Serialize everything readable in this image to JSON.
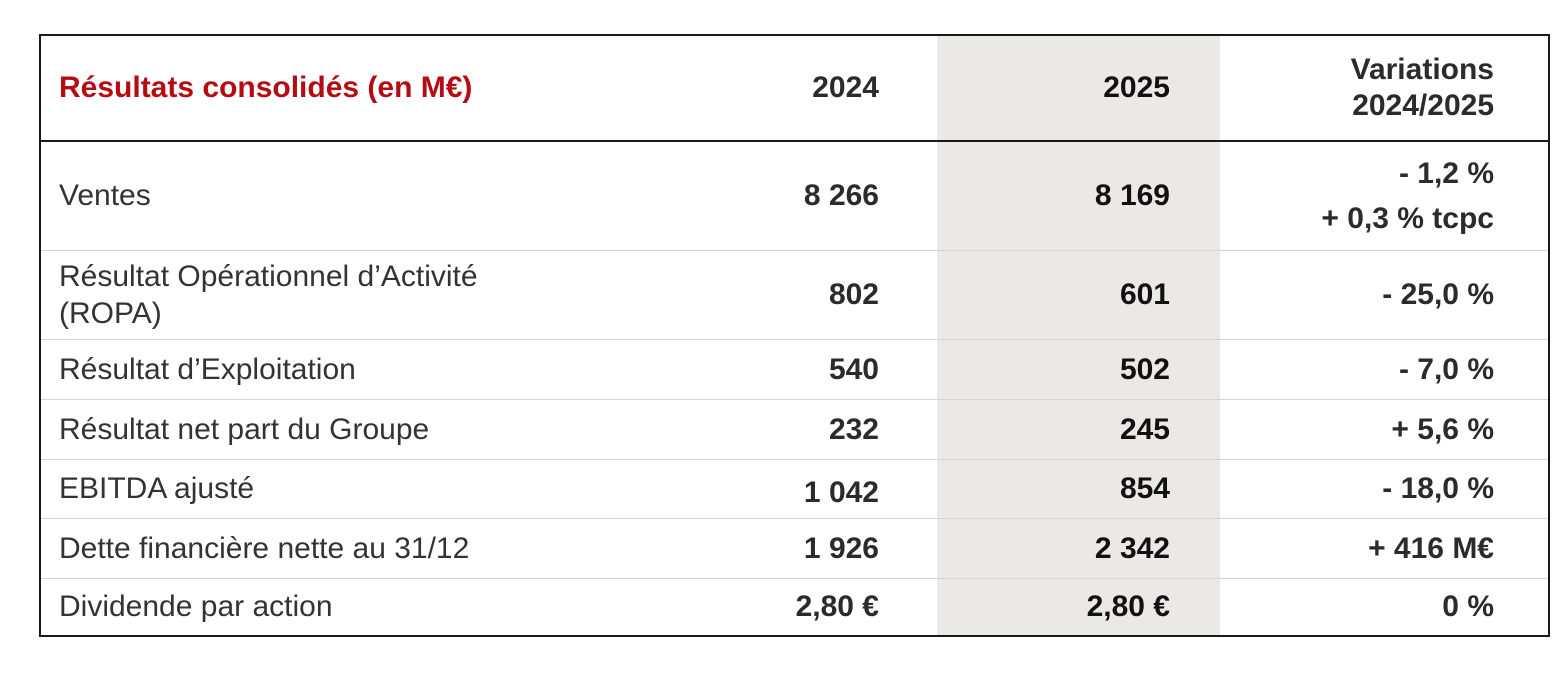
{
  "table": {
    "title": "Résultats consolidés (en M€)",
    "headers": {
      "year_2024": "2024",
      "year_2025": "2025",
      "variation_line1": "Variations",
      "variation_line2": "2024/2025"
    },
    "rows": [
      {
        "label_line1": "Ventes",
        "label_line2": "",
        "v2024": "8 266",
        "v2025": "8 169",
        "variation_line1": "- 1,2 %",
        "variation_line2": "+ 0,3 % tcpc"
      },
      {
        "label_line1": "Résultat Opérationnel d’Activité",
        "label_line2": "(ROPA)",
        "v2024": "802",
        "v2025": "601",
        "variation_line1": "- 25,0 %",
        "variation_line2": ""
      },
      {
        "label_line1": "Résultat d’Exploitation",
        "label_line2": "",
        "v2024": "540",
        "v2025": "502",
        "variation_line1": "- 7,0 %",
        "variation_line2": ""
      },
      {
        "label_line1": "Résultat net part du Groupe",
        "label_line2": "",
        "v2024": "232",
        "v2025": "245",
        "variation_line1": "+ 5,6 %",
        "variation_line2": ""
      },
      {
        "label_line1": "EBITDA ajusté",
        "label_line2": "",
        "v2024": "1 042",
        "v2025": "854",
        "variation_line1": "- 18,0 %",
        "variation_line2": ""
      },
      {
        "label_line1": "Dette financière nette au 31/12",
        "label_line2": "",
        "v2024": "1 926",
        "v2025": "2 342",
        "variation_line1": "+ 416 M€",
        "variation_line2": ""
      },
      {
        "label_line1": "Dividende par action",
        "label_line2": "",
        "v2024": "2,80 €",
        "v2025": "2,80 €",
        "variation_line1": "0 %",
        "variation_line2": ""
      }
    ]
  },
  "colors": {
    "title_red": "#b40c12",
    "highlight_column": "#ebe9e6",
    "border": "#1a1a1a",
    "row_divider": "#d4d4d4"
  }
}
